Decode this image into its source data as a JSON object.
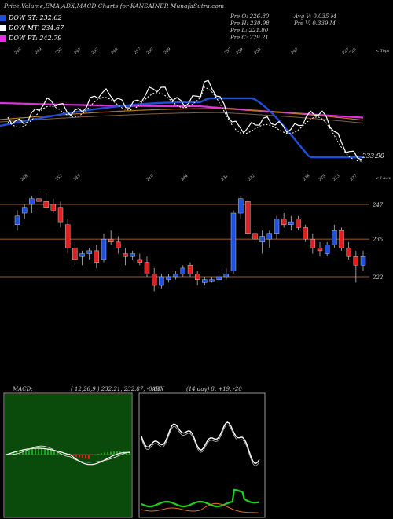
{
  "header": {
    "title": "Price,Volume,EMA,ADX,MACD Charts for KANSAINER MunafaSutra.com",
    "dow_st": "DOW ST: 232.62",
    "dow_mt": "DOW MT: 234.67",
    "dow_pt": "DOW PT: 242.79",
    "pre_o": "Pre   O: 226.80",
    "pre_h": "Pre   H: 230.98",
    "pre_l": "Pre   L: 221.80",
    "pre_c": "Pre   C: 229.21",
    "avg_v": "Avg V: 0.035 M",
    "pre_v": "Pre   V: 0.339 M"
  },
  "colors": {
    "dow_st": "#1f4fd8",
    "dow_mt": "#ffffff",
    "dow_pt": "#e030e0",
    "up": "#2050e0",
    "down": "#e02020",
    "support": "#c87830",
    "adx_line": "#20d020",
    "adx_minus": "#e07020"
  },
  "top_panel": {
    "price_labels": [
      "245",
      "249",
      "253",
      "247",
      "252",
      "248",
      "257",
      "259",
      "249",
      "257",
      "259",
      "253",
      "242",
      "227",
      "226"
    ],
    "right_label": "< Tops",
    "last_price": "233.90"
  },
  "mid_panel": {
    "low_labels": [
      "248",
      "252",
      "245",
      "210",
      "244",
      "231",
      "222",
      "238",
      "229",
      "223",
      "227"
    ],
    "right_label": "< Lows",
    "axis_labels": [
      "247",
      "235",
      "222"
    ]
  },
  "macd_panel": {
    "label": "MACD:",
    "values": "( 12,26,9 ) 232.21,  232.87, -0.66"
  },
  "adx_panel": {
    "label": "ADX",
    "values": "(14  day) 8, +19, -20"
  },
  "chart_data": {
    "type": "candlestick",
    "title": "Price,Volume,EMA,ADX,MACD Charts for KANSAINER",
    "y_levels": [
      247,
      235,
      222
    ],
    "candles": [
      {
        "o": 240,
        "h": 245,
        "l": 238,
        "c": 243
      },
      {
        "o": 244,
        "h": 247,
        "l": 242,
        "c": 246
      },
      {
        "o": 247,
        "h": 250,
        "l": 244,
        "c": 249
      },
      {
        "o": 249,
        "h": 251,
        "l": 247,
        "c": 248
      },
      {
        "o": 248,
        "h": 251,
        "l": 245,
        "c": 246
      },
      {
        "o": 247,
        "h": 249,
        "l": 244,
        "c": 245
      },
      {
        "o": 246,
        "h": 248,
        "l": 239,
        "c": 241
      },
      {
        "o": 240,
        "h": 242,
        "l": 230,
        "c": 232
      },
      {
        "o": 232,
        "h": 234,
        "l": 226,
        "c": 228
      },
      {
        "o": 229,
        "h": 231,
        "l": 226,
        "c": 230
      },
      {
        "o": 230,
        "h": 232,
        "l": 228,
        "c": 231
      },
      {
        "o": 231,
        "h": 233,
        "l": 225,
        "c": 227
      },
      {
        "o": 228,
        "h": 237,
        "l": 227,
        "c": 235
      },
      {
        "o": 235,
        "h": 238,
        "l": 233,
        "c": 234
      },
      {
        "o": 234,
        "h": 236,
        "l": 230,
        "c": 232
      },
      {
        "o": 230,
        "h": 232,
        "l": 226,
        "c": 229
      },
      {
        "o": 229,
        "h": 231,
        "l": 228,
        "c": 230
      },
      {
        "o": 228,
        "h": 230,
        "l": 226,
        "c": 227
      },
      {
        "o": 227,
        "h": 229,
        "l": 222,
        "c": 223
      },
      {
        "o": 223,
        "h": 225,
        "l": 217,
        "c": 219
      },
      {
        "o": 219,
        "h": 223,
        "l": 218,
        "c": 222
      },
      {
        "o": 221,
        "h": 223,
        "l": 220,
        "c": 222
      },
      {
        "o": 222,
        "h": 224,
        "l": 221,
        "c": 223
      },
      {
        "o": 223,
        "h": 226,
        "l": 222,
        "c": 225
      },
      {
        "o": 226,
        "h": 227,
        "l": 222,
        "c": 223
      },
      {
        "o": 223,
        "h": 224,
        "l": 219,
        "c": 221
      },
      {
        "o": 220,
        "h": 222,
        "l": 219,
        "c": 221
      },
      {
        "o": 221,
        "h": 222,
        "l": 220,
        "c": 221
      },
      {
        "o": 221,
        "h": 223,
        "l": 220,
        "c": 222
      },
      {
        "o": 222,
        "h": 225,
        "l": 221,
        "c": 223
      },
      {
        "o": 224,
        "h": 245,
        "l": 223,
        "c": 244
      },
      {
        "o": 244,
        "h": 250,
        "l": 242,
        "c": 249
      },
      {
        "o": 248,
        "h": 249,
        "l": 236,
        "c": 237
      },
      {
        "o": 237,
        "h": 238,
        "l": 233,
        "c": 235
      },
      {
        "o": 234,
        "h": 238,
        "l": 230,
        "c": 236
      },
      {
        "o": 235,
        "h": 238,
        "l": 232,
        "c": 237
      },
      {
        "o": 237,
        "h": 243,
        "l": 235,
        "c": 242
      },
      {
        "o": 242,
        "h": 244,
        "l": 239,
        "c": 240
      },
      {
        "o": 240,
        "h": 243,
        "l": 238,
        "c": 241
      },
      {
        "o": 242,
        "h": 243,
        "l": 238,
        "c": 239
      },
      {
        "o": 239,
        "h": 240,
        "l": 234,
        "c": 235
      },
      {
        "o": 235,
        "h": 237,
        "l": 230,
        "c": 232
      },
      {
        "o": 232,
        "h": 234,
        "l": 229,
        "c": 231
      },
      {
        "o": 230,
        "h": 234,
        "l": 229,
        "c": 233
      },
      {
        "o": 233,
        "h": 240,
        "l": 232,
        "c": 238
      },
      {
        "o": 238,
        "h": 239,
        "l": 231,
        "c": 232
      },
      {
        "o": 232,
        "h": 234,
        "l": 228,
        "c": 229
      },
      {
        "o": 229,
        "h": 231,
        "l": 220,
        "c": 226
      },
      {
        "o": 226,
        "h": 231,
        "l": 224,
        "c": 229
      }
    ]
  }
}
